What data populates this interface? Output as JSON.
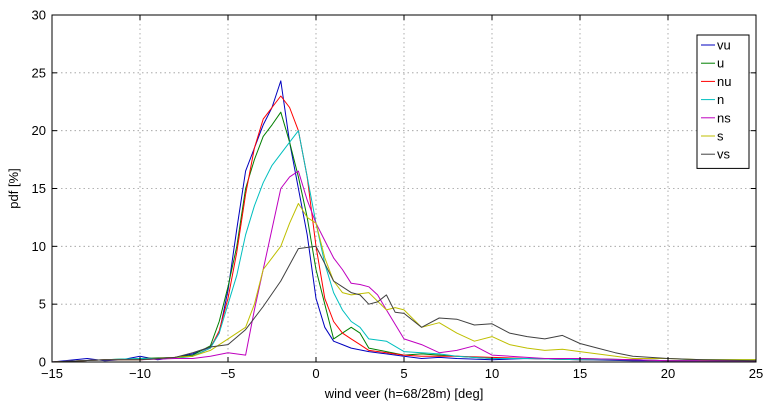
{
  "chart_data": {
    "type": "line",
    "xlabel": "wind veer (h=68/28m) [deg]",
    "ylabel": "pdf [%]",
    "xlim": [
      -15,
      25
    ],
    "ylim": [
      0,
      30
    ],
    "xticks": [
      -15,
      -10,
      -5,
      0,
      5,
      10,
      15,
      20,
      25
    ],
    "yticks": [
      0,
      5,
      10,
      15,
      20,
      25,
      30
    ],
    "xtick_labels": [
      "−15",
      "−10",
      "−5",
      "0",
      "5",
      "10",
      "15",
      "20",
      "25"
    ],
    "ytick_labels": [
      "0",
      "5",
      "10",
      "15",
      "20",
      "25",
      "30"
    ],
    "grid": true,
    "legend_position": "top-right",
    "series": [
      {
        "name": "vu",
        "color": "#0000bf",
        "x": [
          -15,
          -13,
          -12,
          -11,
          -10,
          -9,
          -8,
          -7,
          -6,
          -5.5,
          -5,
          -4.5,
          -4,
          -3.5,
          -3,
          -2.5,
          -2,
          -1.5,
          -1,
          -0.5,
          0,
          0.5,
          1,
          1.5,
          2,
          3,
          4,
          5,
          6,
          7,
          8,
          10,
          12,
          15,
          18,
          20,
          22,
          25
        ],
        "y": [
          0,
          0.3,
          0.1,
          0.2,
          0.5,
          0.2,
          0.4,
          0.7,
          1.3,
          2.5,
          6.2,
          11.5,
          16.5,
          18.5,
          20.5,
          22,
          24.3,
          19,
          15,
          11,
          5.5,
          3,
          1.8,
          1.5,
          1.2,
          0.9,
          0.7,
          0.5,
          0.3,
          0.4,
          0.3,
          0.2,
          0.3,
          0.2,
          0.1,
          0.1,
          0.1,
          0.1
        ]
      },
      {
        "name": "u",
        "color": "#007f00",
        "x": [
          -15,
          -12,
          -10,
          -8,
          -7,
          -6,
          -5.5,
          -5,
          -4.5,
          -4,
          -3.5,
          -3,
          -2.5,
          -2,
          -1.5,
          -1,
          -0.5,
          0,
          0.5,
          1,
          1.5,
          2,
          2.5,
          3,
          4,
          5,
          6,
          7,
          8,
          10,
          12,
          15,
          18,
          20,
          22,
          25
        ],
        "y": [
          0,
          0.2,
          0.3,
          0.4,
          0.6,
          1.4,
          3.5,
          6.5,
          10,
          15,
          17.5,
          19.5,
          20.5,
          21.6,
          19,
          16,
          12.5,
          8,
          5,
          2,
          2.5,
          3,
          2.5,
          1.2,
          0.9,
          0.6,
          0.7,
          0.6,
          0.5,
          0.3,
          0.3,
          0.3,
          0.2,
          0.1,
          0.2,
          0.2
        ]
      },
      {
        "name": "nu",
        "color": "#ff0000",
        "x": [
          -15,
          -12,
          -10,
          -8,
          -7,
          -6,
          -5.5,
          -5,
          -4.5,
          -4,
          -3.5,
          -3,
          -2.5,
          -2,
          -1.5,
          -1,
          -0.5,
          0,
          0.5,
          1,
          1.5,
          2,
          2.5,
          3,
          4,
          5,
          6,
          7,
          8,
          10,
          12,
          15,
          18,
          20,
          22,
          25
        ],
        "y": [
          0,
          0.2,
          0.2,
          0.4,
          0.5,
          1.2,
          2.7,
          5.5,
          9.5,
          14.5,
          18.5,
          21,
          22,
          23,
          22,
          20,
          16,
          10,
          5.5,
          3.5,
          2.5,
          2,
          1.5,
          1,
          0.8,
          0.6,
          0.5,
          0.5,
          0.5,
          0.4,
          0.3,
          0.2,
          0.2,
          0.1,
          0.1,
          0.1
        ]
      },
      {
        "name": "n",
        "color": "#00bfbf",
        "x": [
          -15,
          -12,
          -10,
          -8,
          -7,
          -6,
          -5.5,
          -5,
          -4.5,
          -4,
          -3.5,
          -3,
          -2.5,
          -2,
          -1.5,
          -1,
          -0.5,
          0,
          0.5,
          1,
          1.5,
          2,
          2.5,
          3,
          4,
          5,
          6,
          7,
          8,
          10,
          12,
          15,
          18,
          20,
          22,
          25
        ],
        "y": [
          0,
          0.2,
          0.3,
          0.3,
          0.5,
          1.2,
          2.5,
          5,
          7.5,
          11,
          13.5,
          15.5,
          17,
          18,
          19,
          20,
          16,
          12,
          8.5,
          6,
          4.5,
          3.5,
          3,
          2,
          1.8,
          0.9,
          0.8,
          0.7,
          0.5,
          0.3,
          0.3,
          0.2,
          0.2,
          0.1,
          0.1,
          0.1
        ]
      },
      {
        "name": "ns",
        "color": "#bf00bf",
        "x": [
          -15,
          -12,
          -10,
          -8,
          -7,
          -6,
          -5,
          -4,
          -3.5,
          -3,
          -2.5,
          -2,
          -1.5,
          -1,
          -0.5,
          0,
          0.5,
          1,
          1.5,
          2,
          2.5,
          3,
          3.5,
          4,
          5,
          6,
          7,
          8,
          9,
          10,
          11,
          12,
          13,
          15,
          18,
          20,
          22,
          25
        ],
        "y": [
          0,
          0.2,
          0.2,
          0.3,
          0.3,
          0.5,
          0.8,
          0.6,
          4.5,
          8,
          11.5,
          15,
          16,
          16.5,
          14,
          12,
          10.5,
          9,
          8,
          6.8,
          6.7,
          6.5,
          5.8,
          4.5,
          2,
          1.5,
          0.8,
          1,
          1.4,
          0.6,
          0.5,
          0.4,
          0.3,
          0.3,
          0.2,
          0.1,
          0.1,
          0.1
        ]
      },
      {
        "name": "s",
        "color": "#bfbf00",
        "x": [
          -15,
          -12,
          -10,
          -8,
          -7,
          -6,
          -5,
          -4,
          -3.5,
          -3,
          -2.5,
          -2,
          -1.5,
          -1,
          -0.5,
          0,
          0.5,
          1,
          1.5,
          2,
          3,
          4,
          4.5,
          5,
          6,
          7,
          8,
          9,
          10,
          11,
          12,
          13,
          14,
          15,
          18,
          20,
          22,
          25
        ],
        "y": [
          0,
          0.2,
          0.2,
          0.4,
          0.5,
          1,
          2,
          3,
          5,
          8,
          9,
          10,
          12,
          13.7,
          12.5,
          12,
          9,
          7,
          6,
          5.8,
          6,
          4.5,
          4.7,
          4.5,
          3,
          3.4,
          2.5,
          1.8,
          2.2,
          1.5,
          1.2,
          1,
          1.1,
          0.9,
          0.3,
          0.3,
          0.2,
          0.2
        ]
      },
      {
        "name": "vs",
        "color": "#404040",
        "x": [
          -15,
          -12,
          -10,
          -8,
          -7,
          -6,
          -5,
          -4,
          -3,
          -2,
          -1,
          0,
          0.5,
          1,
          1.5,
          2,
          2.5,
          3,
          3.5,
          4,
          4.5,
          5,
          6,
          7,
          8,
          9,
          10,
          11,
          12,
          13,
          14,
          15,
          16,
          17,
          18,
          20,
          22,
          25
        ],
        "y": [
          0,
          0.2,
          0.2,
          0.4,
          0.8,
          1.3,
          1.5,
          2.8,
          4.8,
          7,
          9.8,
          10,
          8.5,
          7,
          6.5,
          6,
          5.8,
          5,
          5.2,
          5.8,
          4.3,
          4.2,
          3,
          3.8,
          3.7,
          3.2,
          3.3,
          2.5,
          2.2,
          2,
          2.3,
          1.6,
          1.2,
          0.8,
          0.5,
          0.3,
          0.2,
          0.1
        ]
      }
    ]
  }
}
